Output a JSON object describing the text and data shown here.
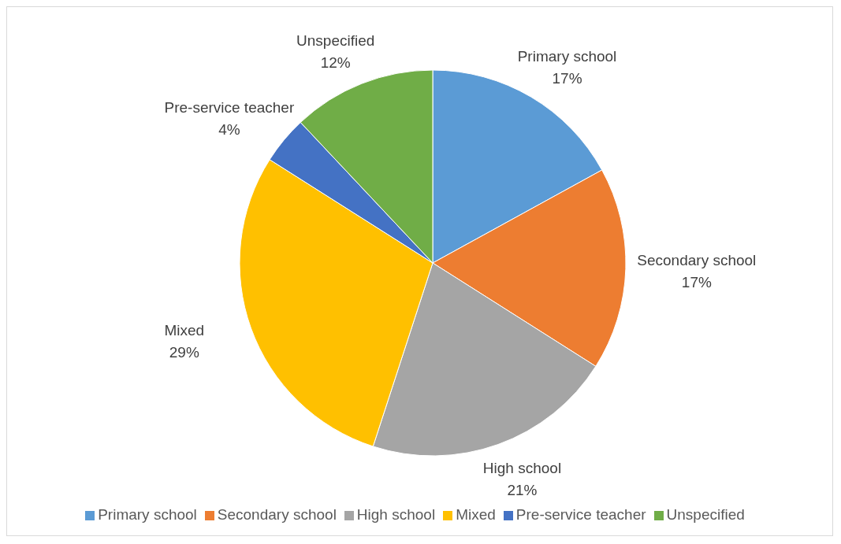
{
  "chart_data": {
    "type": "pie",
    "categories": [
      "Primary school",
      "Secondary school",
      "High school",
      "Mixed",
      "Pre-service teacher",
      "Unspecified"
    ],
    "values": [
      17,
      17,
      21,
      29,
      4,
      12
    ],
    "value_labels": [
      "17%",
      "17%",
      "21%",
      "29%",
      "4%",
      "12%"
    ],
    "colors": [
      "#5b9bd5",
      "#ed7d31",
      "#a5a5a5",
      "#ffc000",
      "#4472c4",
      "#70ad47"
    ],
    "legend": "bottom"
  }
}
